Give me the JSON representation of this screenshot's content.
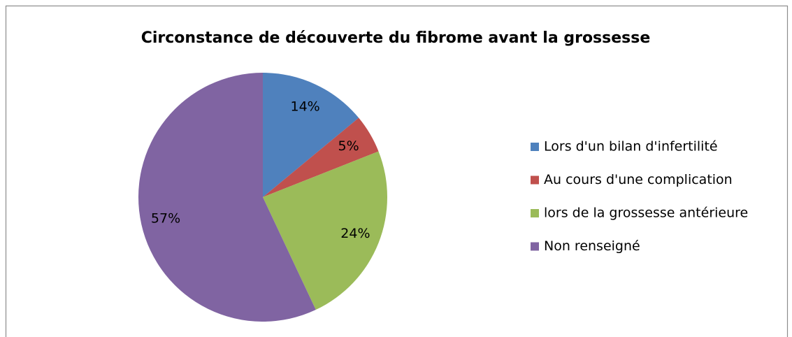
{
  "chart_data": {
    "type": "pie",
    "title": "Circonstance de découverte du fibrome avant la grossesse",
    "categories": [
      "Lors d'un bilan d'infertilité",
      "Au cours d'une complication",
      "lors de la grossesse antérieure",
      "Non renseigné"
    ],
    "values": [
      14,
      5,
      24,
      57
    ],
    "value_labels": [
      "14%",
      "5%",
      "24%",
      "57%"
    ],
    "colors": [
      "#4f81bd",
      "#c0504d",
      "#9bbb59",
      "#8064a2"
    ],
    "legend": "right"
  }
}
